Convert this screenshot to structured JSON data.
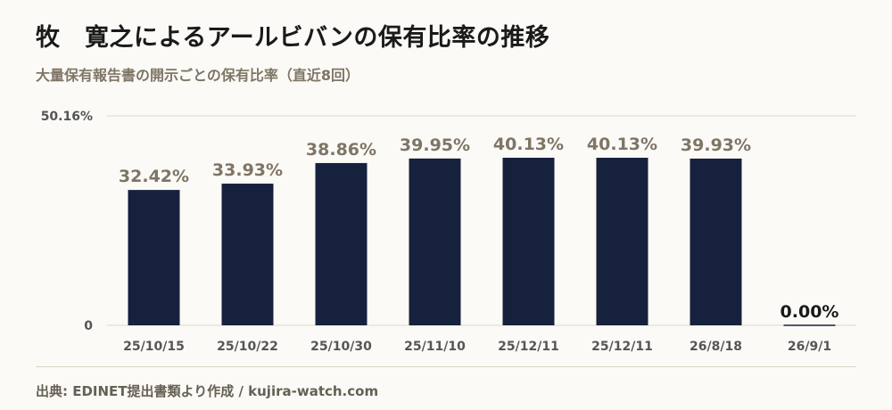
{
  "header": {
    "title": "牧　寛之によるアールビバンの保有比率の推移",
    "subtitle": "大量保有報告書の開示ごとの保有比率（直近8回）"
  },
  "footer": {
    "source": "出典: EDINET提出書類より作成 / kujira-watch.com"
  },
  "colors": {
    "bar": "#16213d",
    "label_normal": "#7f7566",
    "label_last": "#1a1a1a",
    "tick_label": "#555555",
    "gridline": "#ddd8c8"
  },
  "chart_data": {
    "type": "bar",
    "title": "牧　寛之によるアールビバンの保有比率の推移",
    "subtitle": "大量保有報告書の開示ごとの保有比率（直近8回）",
    "xlabel": "",
    "ylabel": "",
    "categories": [
      "25/10/15",
      "25/10/22",
      "25/10/30",
      "25/11/10",
      "25/12/11",
      "25/12/11",
      "26/8/18",
      "26/9/1"
    ],
    "values": [
      32.42,
      33.93,
      38.86,
      39.95,
      40.13,
      40.13,
      39.93,
      0.0
    ],
    "value_labels": [
      "32.42%",
      "33.93%",
      "38.86%",
      "39.95%",
      "40.13%",
      "40.13%",
      "39.93%",
      "0.00%"
    ],
    "ylim": [
      0,
      50.16
    ],
    "y_tick_labels": [
      "0",
      "50.16%"
    ],
    "grid": true,
    "legend": "none"
  }
}
